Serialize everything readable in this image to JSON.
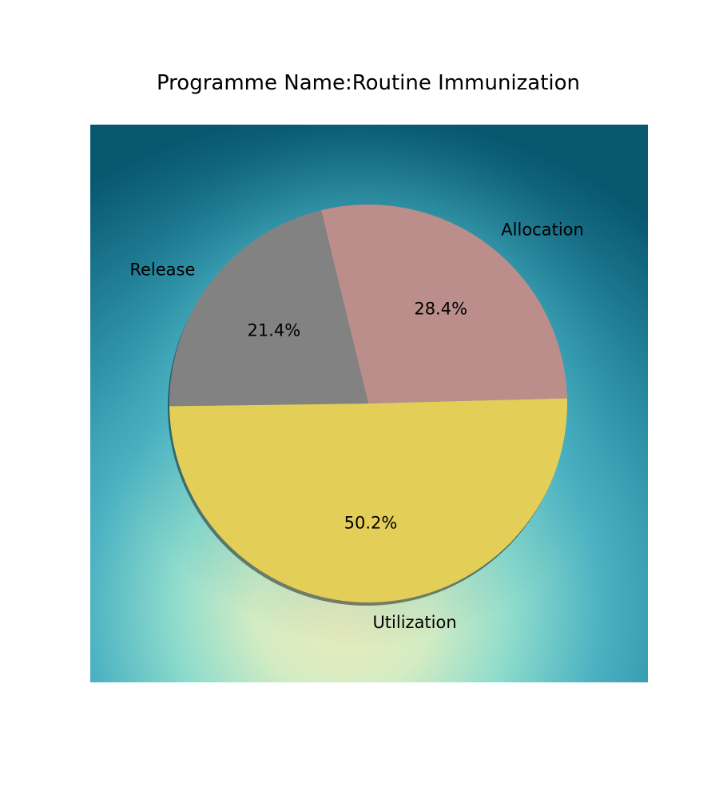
{
  "chart_data": {
    "type": "pie",
    "title": "Programme Name:Routine Immunization",
    "slices": [
      {
        "label": "Allocation",
        "value": 28.4,
        "pct_label": "28.4%",
        "color": "#bc8e8b"
      },
      {
        "label": "Release",
        "value": 21.4,
        "pct_label": "21.4%",
        "color": "#828282"
      },
      {
        "label": "Utilization",
        "value": 50.2,
        "pct_label": "50.2%",
        "color": "#e3ce58"
      }
    ],
    "start_angle_deg": 0,
    "direction": "counterclockwise",
    "shadow": true,
    "background": "radial teal-to-pale-yellow gradient panel"
  }
}
